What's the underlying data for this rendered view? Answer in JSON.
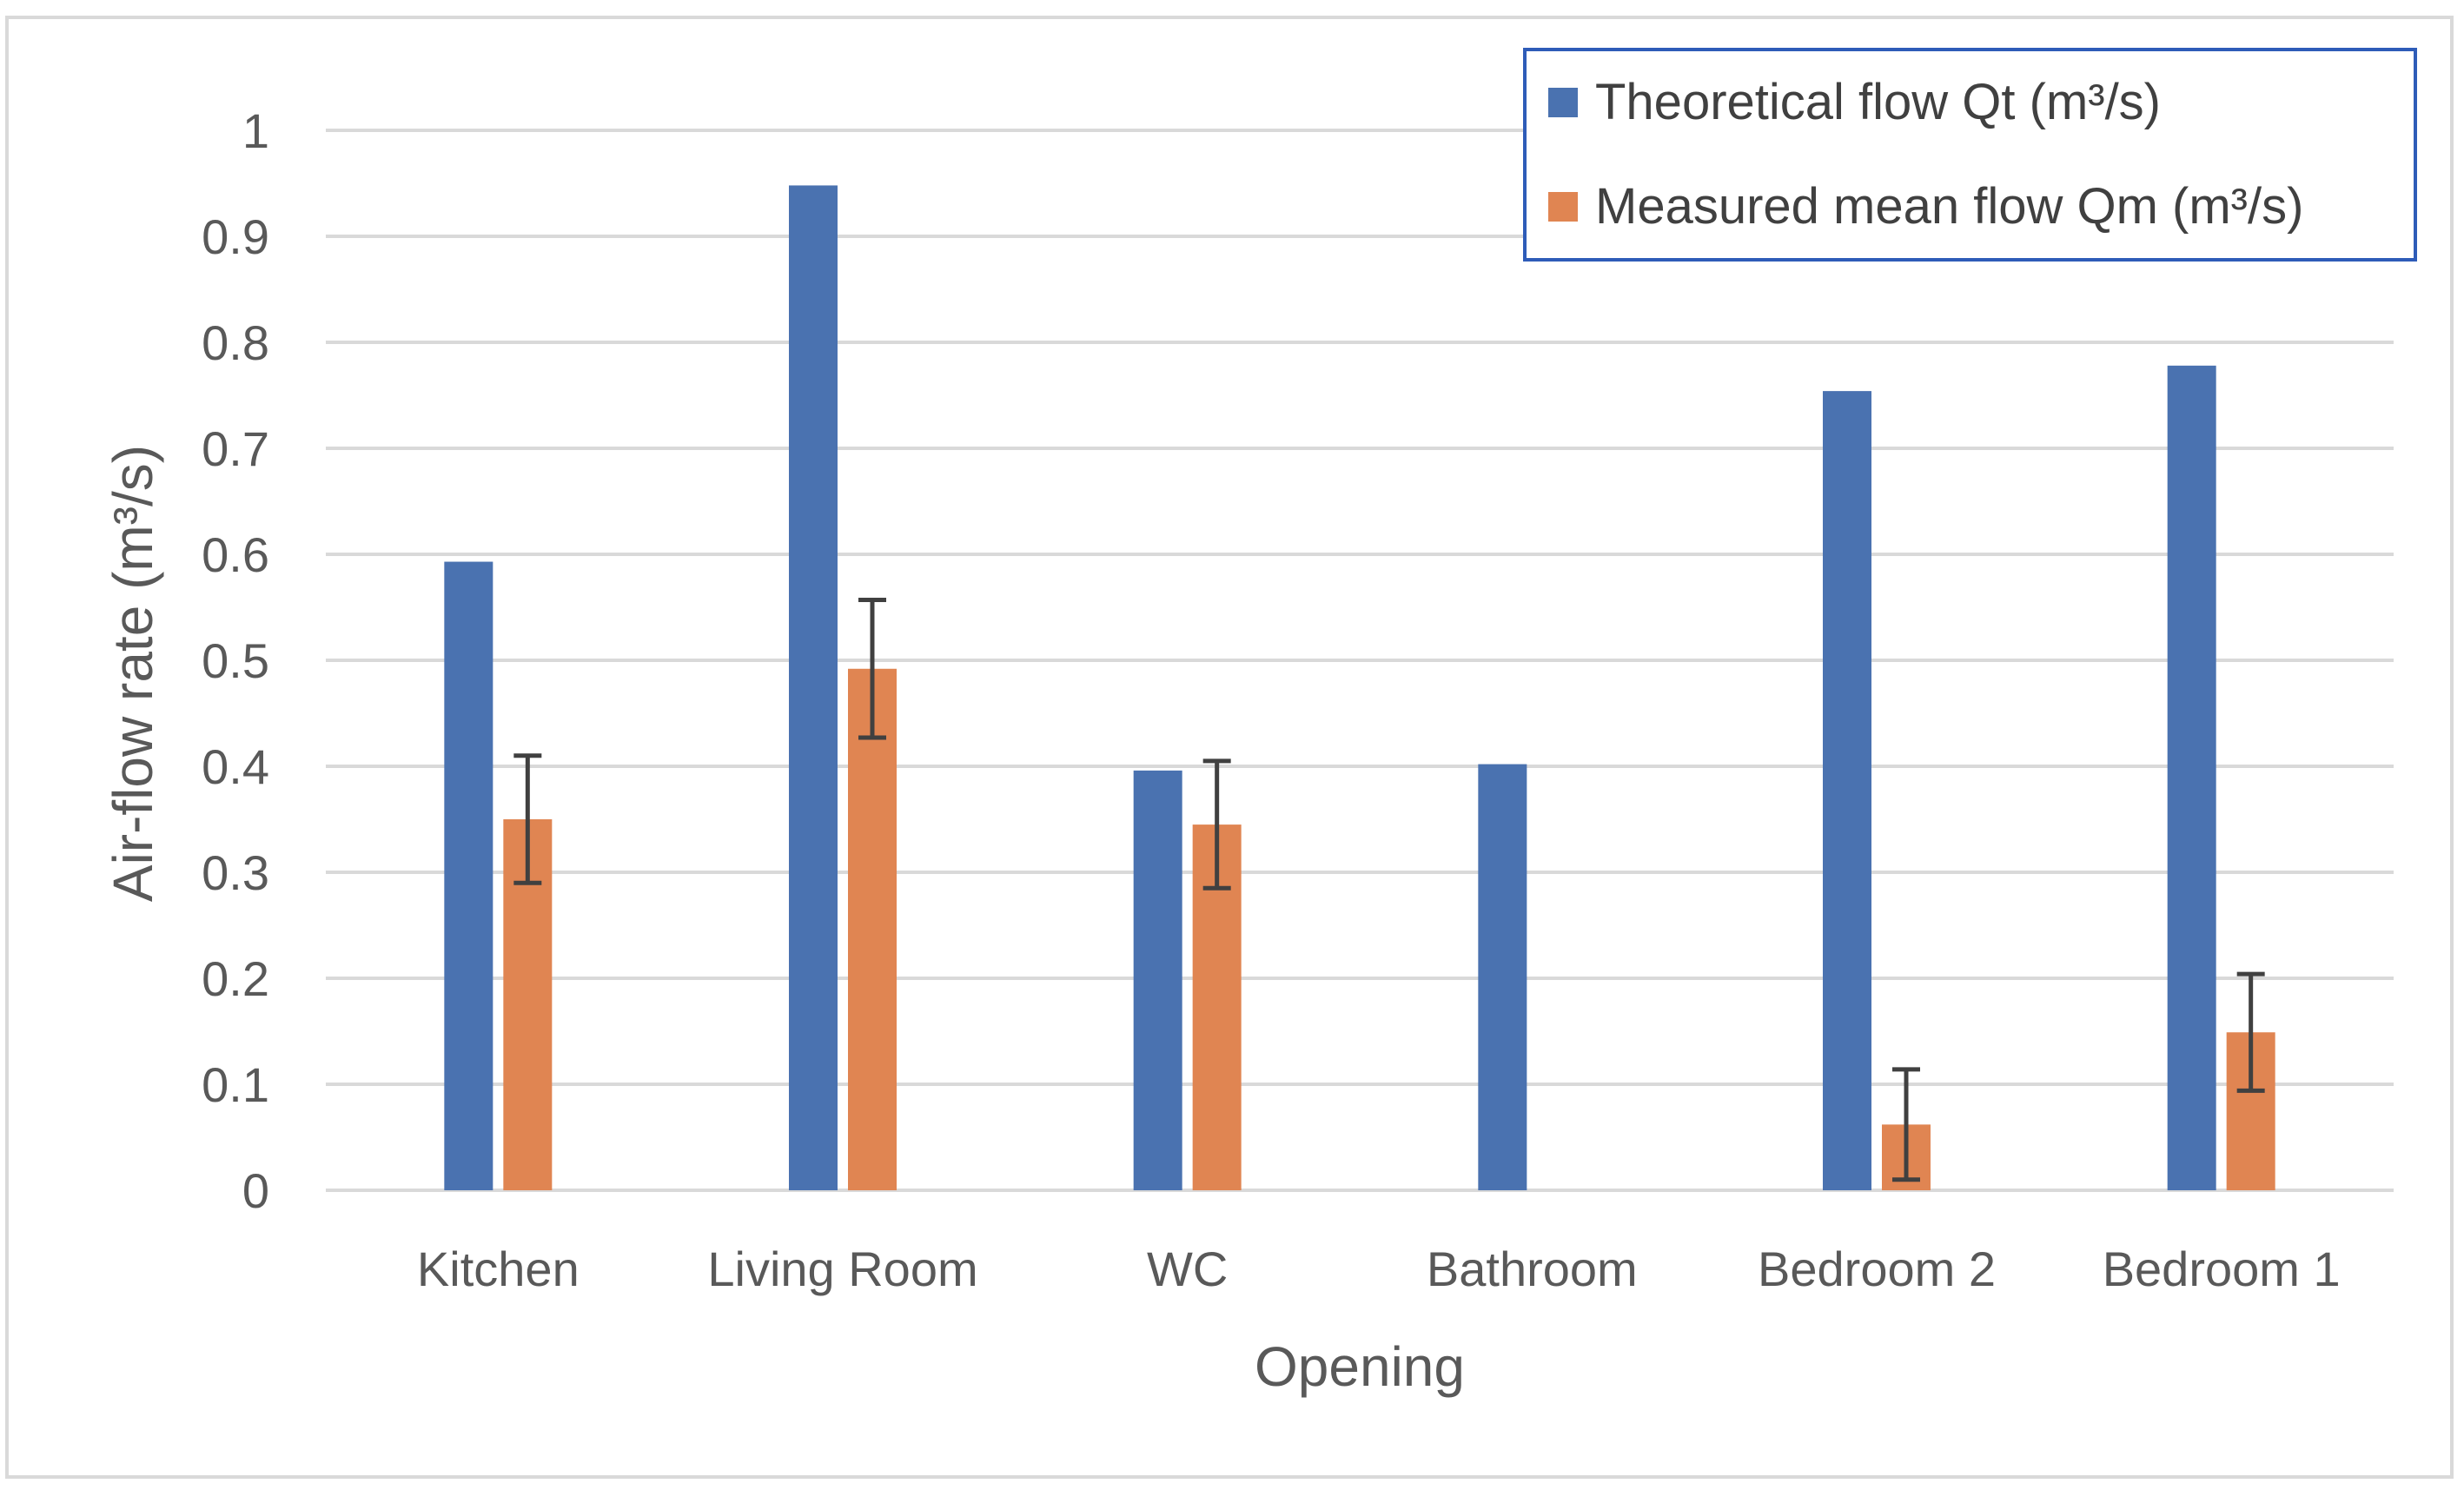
{
  "chart_data": {
    "type": "bar",
    "title": "",
    "xlabel": "Opening",
    "ylabel": "Air-flow rate (m³/s)",
    "ylim": [
      0,
      1
    ],
    "yticks": [
      "0",
      "0.1",
      "0.2",
      "0.3",
      "0.4",
      "0.5",
      "0.6",
      "0.7",
      "0.8",
      "0.9",
      "1"
    ],
    "grid": true,
    "legend_position": "top-right",
    "categories": [
      "Kitchen",
      "Living Room",
      "WC",
      "Bathroom",
      "Bedroom 2",
      "Bedroom 1"
    ],
    "series": [
      {
        "name": "Theoretical flow Qt (m³/s)",
        "color": "#4a72b0",
        "values": [
          0.593,
          0.948,
          0.396,
          0.402,
          0.754,
          0.778
        ],
        "errors": null
      },
      {
        "name": "Measured mean flow Qm (m³/s)",
        "color": "#e08552",
        "values": [
          0.35,
          0.492,
          0.345,
          null,
          0.062,
          0.149
        ],
        "errors": [
          0.06,
          0.065,
          0.06,
          null,
          0.052,
          0.055
        ]
      }
    ],
    "colors": {
      "grid": "#d9d9d9",
      "axis_text": "#595959",
      "error_bar": "#404040",
      "legend_border": "#2e5cb8",
      "frame_border": "#d9d9d9"
    }
  }
}
